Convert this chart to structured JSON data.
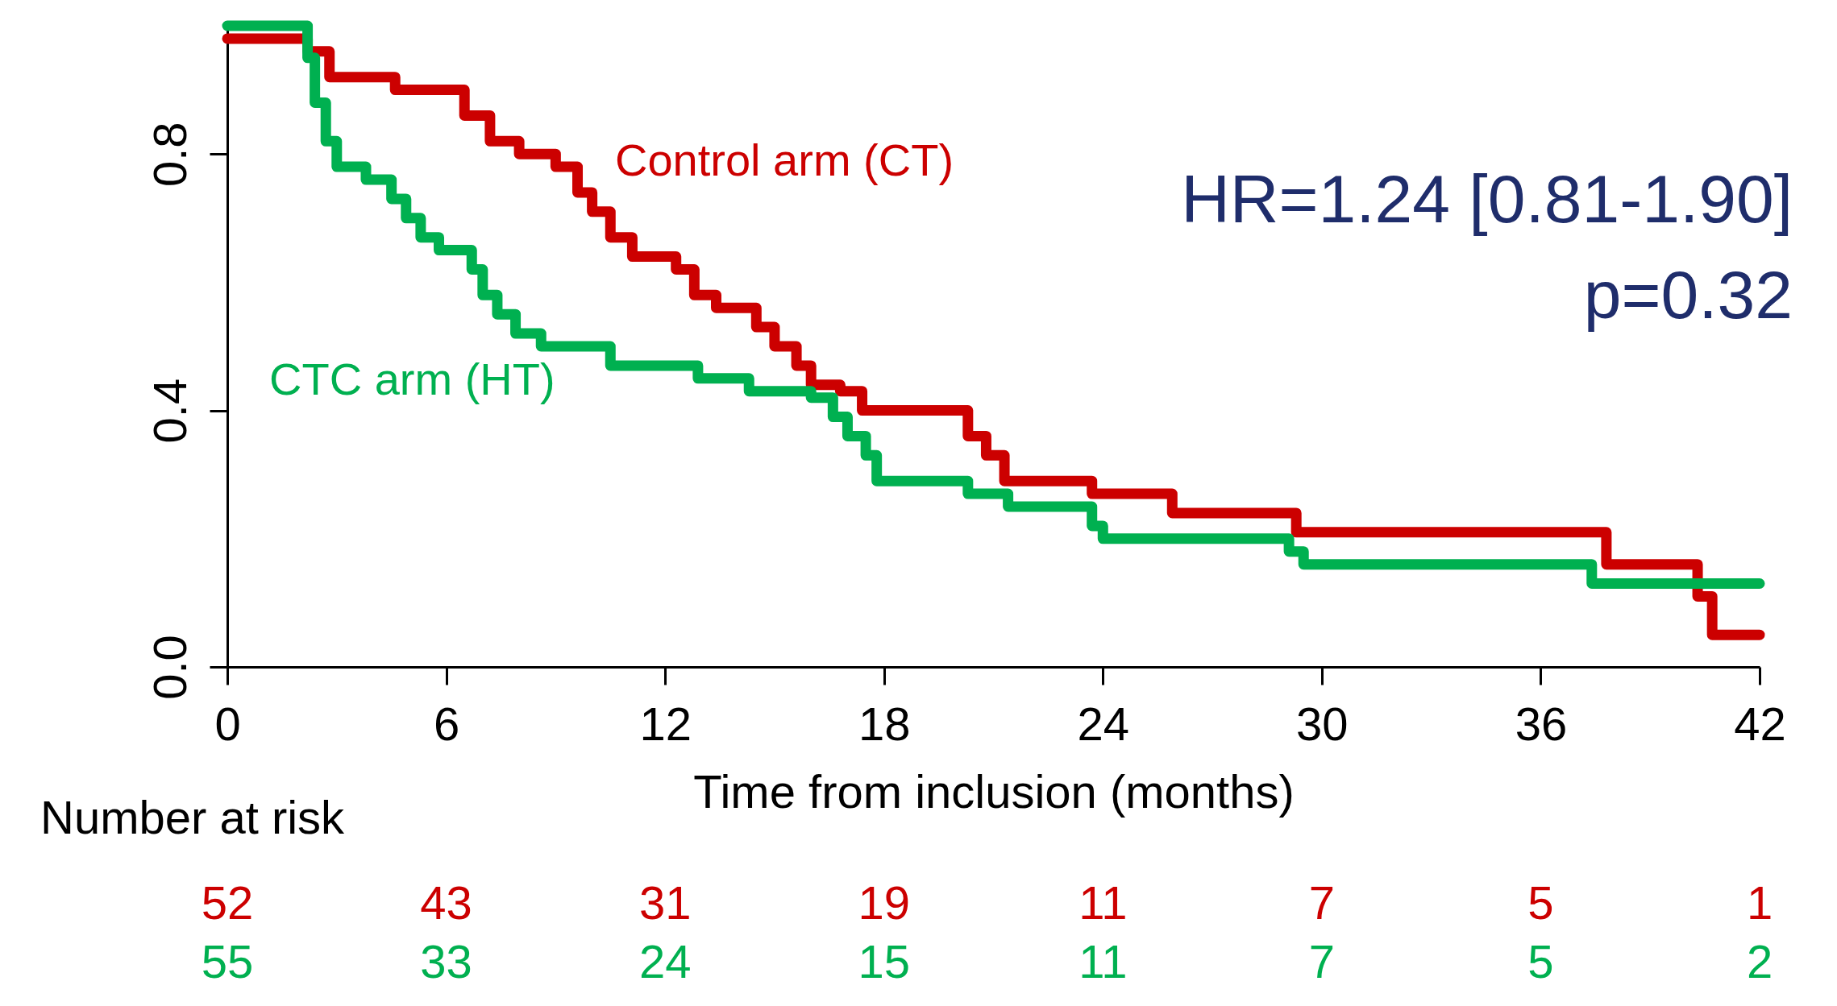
{
  "chart_data": {
    "type": "step",
    "xlabel": "Time from inclusion (months)",
    "xlim": [
      0,
      42
    ],
    "xticks": [
      0,
      6,
      12,
      18,
      24,
      30,
      36,
      42
    ],
    "ylim": [
      0,
      1
    ],
    "yticks": [
      {
        "value": 0,
        "label": "0.0"
      },
      {
        "value": 0.4,
        "label": "0.4"
      },
      {
        "value": 0.8,
        "label": "0.8"
      }
    ],
    "line_style": "solid",
    "marker": "none",
    "series": [
      {
        "name": "Control arm (CT)",
        "color": "#cc0000",
        "x": [
          0,
          2.2,
          2.8,
          4.6,
          6.5,
          7.2,
          8.0,
          9.0,
          9.6,
          10.0,
          10.5,
          11.1,
          12.3,
          12.8,
          13.4,
          14.5,
          15.0,
          15.6,
          16.0,
          16.8,
          17.4,
          20.3,
          20.8,
          21.3,
          23.7,
          25.9,
          29.3,
          37.8,
          40.3,
          40.7,
          42
        ],
        "values": [
          0.98,
          0.96,
          0.92,
          0.9,
          0.86,
          0.82,
          0.8,
          0.78,
          0.74,
          0.71,
          0.67,
          0.64,
          0.62,
          0.58,
          0.56,
          0.53,
          0.5,
          0.47,
          0.44,
          0.43,
          0.4,
          0.36,
          0.33,
          0.29,
          0.27,
          0.24,
          0.21,
          0.16,
          0.11,
          0.05,
          0.05
        ]
      },
      {
        "name": "CTC arm (HT)",
        "color": "#00b050",
        "x": [
          0,
          2.2,
          2.4,
          2.7,
          3.0,
          3.8,
          4.5,
          4.9,
          5.3,
          5.8,
          6.7,
          7.0,
          7.4,
          7.9,
          8.6,
          10.5,
          12.9,
          14.3,
          16.0,
          16.6,
          17.0,
          17.5,
          17.8,
          20.3,
          21.4,
          23.7,
          24.0,
          29.1,
          29.5,
          37.4,
          42
        ],
        "values": [
          1.0,
          0.95,
          0.88,
          0.82,
          0.78,
          0.76,
          0.73,
          0.7,
          0.67,
          0.65,
          0.62,
          0.58,
          0.55,
          0.52,
          0.5,
          0.47,
          0.45,
          0.43,
          0.42,
          0.39,
          0.36,
          0.33,
          0.29,
          0.27,
          0.25,
          0.22,
          0.2,
          0.18,
          0.16,
          0.13,
          0.13
        ]
      }
    ],
    "annotations": [
      "HR=1.24 [0.81-1.90]",
      "p=0.32",
      "Number at risk",
      "52",
      "43",
      "31",
      "19",
      "11",
      "7",
      "5",
      "1",
      "55",
      "33",
      "24",
      "15",
      "11",
      "7",
      "5",
      "2"
    ]
  }
}
